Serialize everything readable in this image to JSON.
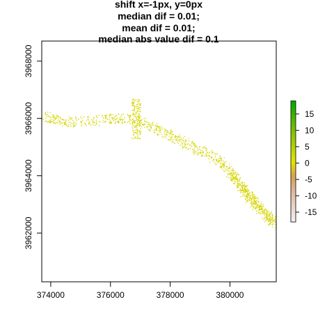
{
  "chart_data": {
    "type": "raster",
    "title_lines": [
      "shift x=-1px, y=0px",
      "median dif = 0.01;",
      "mean dif = 0.01;",
      "median abs value dif = 0.1"
    ],
    "xlabel": "",
    "ylabel": "",
    "x_ticks": [
      374000,
      376000,
      378000,
      380000
    ],
    "y_ticks": [
      3962000,
      3964000,
      3966000,
      3968000
    ],
    "xlim": [
      373700,
      381550
    ],
    "ylim": [
      3960300,
      3968700
    ],
    "legend": {
      "ticks": [
        15,
        10,
        5,
        0,
        -5,
        -10,
        -15
      ],
      "range": [
        -18,
        19
      ],
      "colors": {
        "min": "#f2f2f2",
        "mid_neg": "#d9a050",
        "zero": "#e6e600",
        "mid_pos": "#7fc000",
        "max": "#00a600"
      }
    },
    "point_color": "#d4d400",
    "strip_path": [
      [
        373750,
        3966100
      ],
      [
        374300,
        3965900
      ],
      [
        375200,
        3965900
      ],
      [
        376000,
        3966000
      ],
      [
        376800,
        3966000
      ],
      [
        377400,
        3965700
      ],
      [
        378000,
        3965400
      ],
      [
        378600,
        3965100
      ],
      [
        379200,
        3964800
      ],
      [
        379800,
        3964400
      ],
      [
        380200,
        3963900
      ],
      [
        380500,
        3963400
      ],
      [
        380900,
        3962900
      ],
      [
        381500,
        3962400
      ]
    ],
    "dense_cluster": {
      "x": [
        376700,
        377000
      ],
      "y": [
        3965300,
        3966700
      ]
    }
  }
}
